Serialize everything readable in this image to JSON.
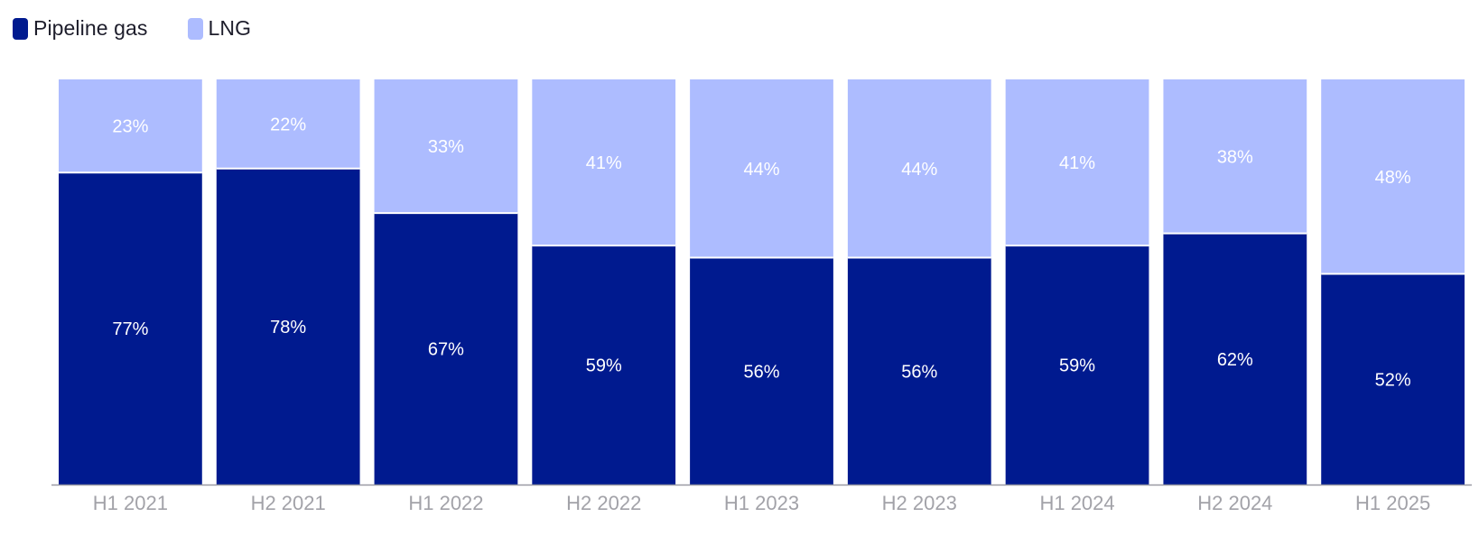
{
  "colors": {
    "pipeline": "#001a8f",
    "lng": "#adbcff",
    "axis": "#9a9aa3",
    "tick_label": "#a2a2a8",
    "data_label": "#ffffff",
    "legend_text": "#1d1d2b"
  },
  "legend": {
    "items": [
      {
        "label": "Pipeline gas",
        "color": "#001a8f"
      },
      {
        "label": "LNG",
        "color": "#adbcff"
      }
    ],
    "position": "top-left"
  },
  "chart_data": {
    "type": "bar",
    "stacked": true,
    "categories": [
      "H1 2021",
      "H2 2021",
      "H1 2022",
      "H2 2022",
      "H1 2023",
      "H2 2023",
      "H1 2024",
      "H2 2024",
      "H1 2025"
    ],
    "series": [
      {
        "name": "Pipeline gas",
        "values": [
          77,
          78,
          67,
          59,
          56,
          56,
          59,
          62,
          52
        ],
        "labels": [
          "77%",
          "78%",
          "67%",
          "59%",
          "56%",
          "56%",
          "59%",
          "62%",
          "52%"
        ]
      },
      {
        "name": "LNG",
        "values": [
          23,
          22,
          33,
          41,
          44,
          44,
          41,
          38,
          48
        ],
        "labels": [
          "23%",
          "22%",
          "33%",
          "41%",
          "44%",
          "44%",
          "41%",
          "38%",
          "48%"
        ]
      }
    ],
    "ylim": [
      0,
      100
    ],
    "grid": false,
    "title": "",
    "xlabel": "",
    "ylabel": ""
  }
}
